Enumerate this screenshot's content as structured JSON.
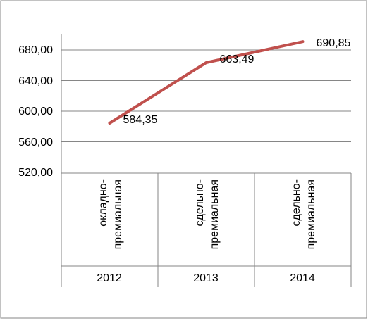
{
  "chart_data": {
    "type": "line",
    "categories": [
      {
        "type_label": [
          "окладно-",
          "премиальная"
        ],
        "year": "2012"
      },
      {
        "type_label": [
          "сдельно-",
          "премиальная"
        ],
        "year": "2013"
      },
      {
        "type_label": [
          "сдельно-",
          "премиальная"
        ],
        "year": "2014"
      }
    ],
    "series": [
      {
        "values": [
          584.35,
          663.49,
          690.85
        ],
        "value_labels": [
          "584,35",
          "663,49",
          "690,85"
        ],
        "color": "#c0504d"
      }
    ],
    "y_axis": {
      "min": 520,
      "max": 680,
      "ticks": [
        "520,00",
        "560,00",
        "600,00",
        "640,00",
        "680,00"
      ]
    },
    "grid": true,
    "legend": "none",
    "axis_color": "#868686",
    "grid_color": "#868686"
  }
}
